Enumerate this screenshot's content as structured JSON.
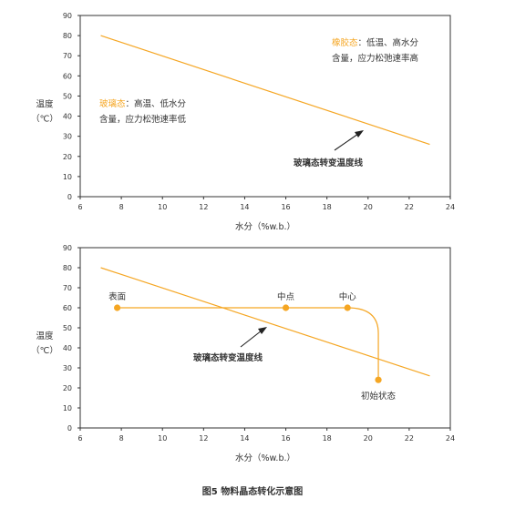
{
  "colors": {
    "line": "#F5A623",
    "axis": "#333333"
  },
  "chart_data": [
    {
      "type": "line",
      "xlabel": "水分（%w.b.）",
      "ylabel": [
        "温度",
        "（℃）"
      ],
      "xlim": [
        6,
        24
      ],
      "ylim": [
        0,
        90
      ],
      "xticks": [
        6,
        8,
        10,
        12,
        14,
        16,
        18,
        20,
        22,
        24
      ],
      "yticks": [
        0,
        10,
        20,
        30,
        40,
        50,
        60,
        70,
        80,
        90
      ],
      "series": [
        {
          "name": "玻璃态转变温度线",
          "x": [
            7,
            23
          ],
          "y": [
            80,
            26
          ]
        }
      ],
      "annotations": {
        "rubber": {
          "key": "橡胶态",
          "rest1": "：低温、高水分",
          "line2": "含量，应力松弛速率高"
        },
        "glass": {
          "key": "玻璃态",
          "rest1": "：高温、低水分",
          "line2": "含量，应力松弛速率低"
        },
        "curve_label": "玻璃态转变温度线"
      }
    },
    {
      "type": "line",
      "xlabel": "水分（%w.b.）",
      "ylabel": [
        "温度",
        "（℃）"
      ],
      "xlim": [
        6,
        24
      ],
      "ylim": [
        0,
        90
      ],
      "xticks": [
        6,
        8,
        10,
        12,
        14,
        16,
        18,
        20,
        22,
        24
      ],
      "yticks": [
        0,
        10,
        20,
        30,
        40,
        50,
        60,
        70,
        80,
        90
      ],
      "series": [
        {
          "name": "玻璃态转变温度线",
          "x": [
            7,
            23
          ],
          "y": [
            80,
            26
          ]
        }
      ],
      "points": [
        {
          "label": "表面",
          "x": 7.8,
          "y": 60
        },
        {
          "label": "中点",
          "x": 16,
          "y": 60
        },
        {
          "label": "中心",
          "x": 19,
          "y": 60
        },
        {
          "label": "初始状态",
          "x": 20.5,
          "y": 24
        }
      ],
      "curve_label": "玻璃态转变温度线"
    }
  ],
  "caption": "图5  物料晶态转化示意图"
}
